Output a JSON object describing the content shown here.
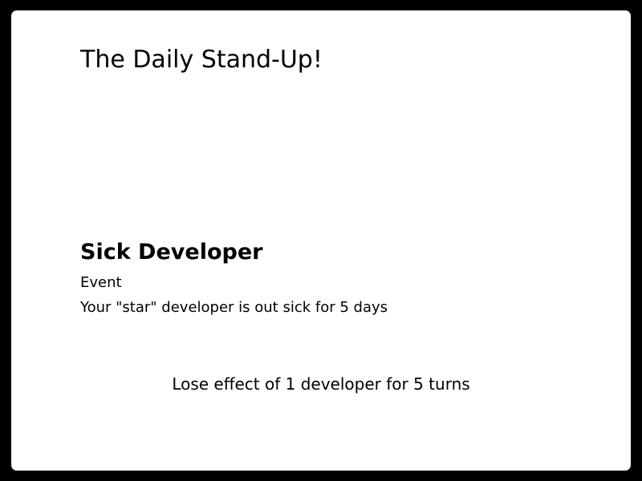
{
  "game": {
    "title": "The Daily Stand-Up!"
  },
  "card": {
    "name": "Sick Developer",
    "type": "Event",
    "description": "Your \"star\" developer is out sick for 5 days",
    "effect": "Lose effect of 1 developer for 5 turns"
  },
  "colors": {
    "frame": "#000000",
    "card_background": "#ffffff",
    "text": "#000000"
  }
}
